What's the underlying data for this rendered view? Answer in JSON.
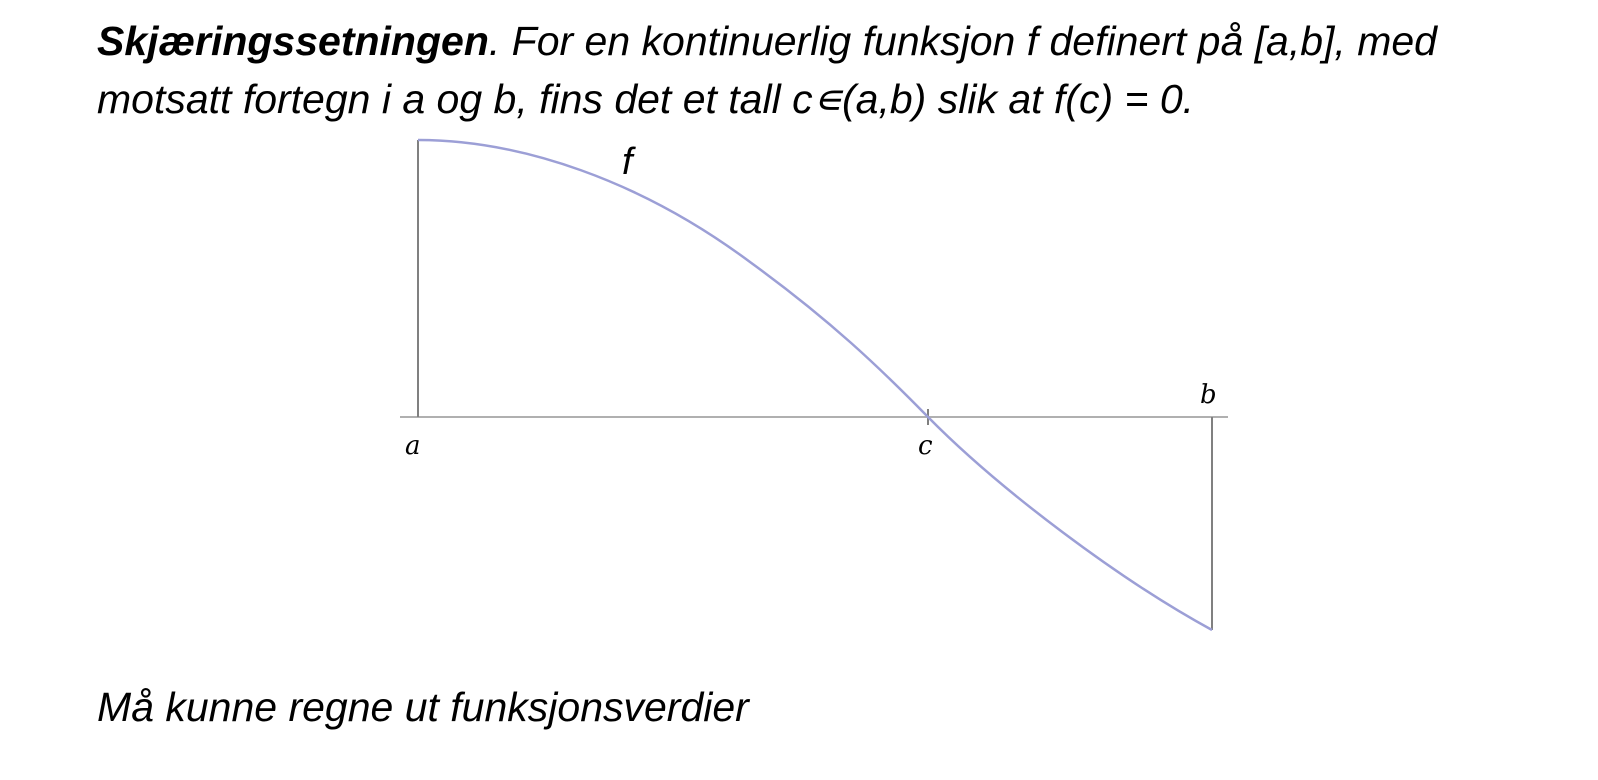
{
  "theorem": {
    "name": "Skjæringssetningen",
    "text": ". For en kontinuerlig funksjon f definert på [a,b], med motsatt fortegn i a og b, fins det et tall c∊(a,b) slik at f(c) = 0."
  },
  "figure": {
    "curve_label": "f",
    "point_a_label": "a",
    "point_b_label": "b",
    "point_c_label": "c",
    "colors": {
      "curve": "#9c9fd6",
      "axis": "#b0b0b0",
      "verticals": "#808080"
    }
  },
  "note": "Må kunne regne ut funksjonsverdier"
}
